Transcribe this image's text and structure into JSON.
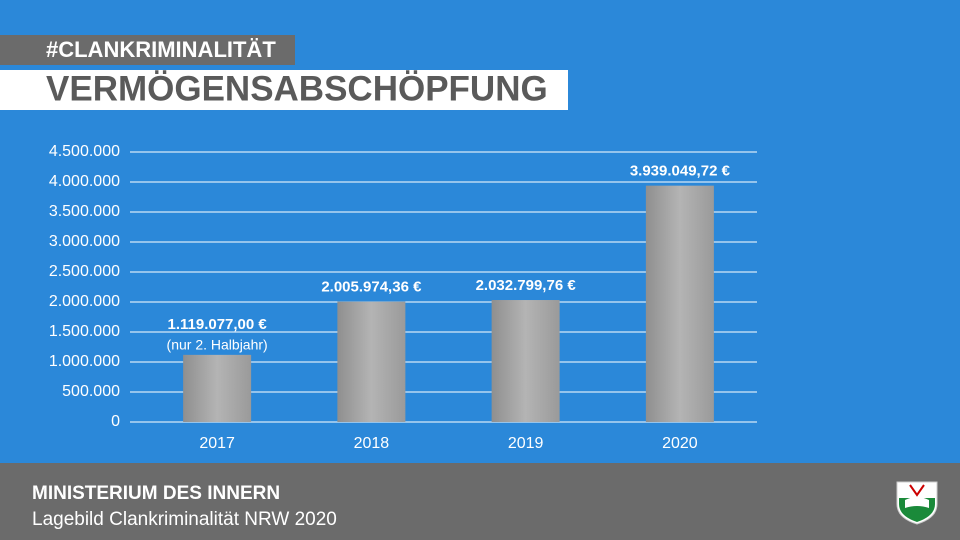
{
  "chart_data": {
    "type": "bar",
    "tag": "#CLANKRIMINALITÄT",
    "title": "VERMÖGENSABSCHÖPFUNG",
    "categories": [
      "2017",
      "2018",
      "2019",
      "2020"
    ],
    "values": [
      1119077.0,
      2005974.36,
      2032799.76,
      3939049.72
    ],
    "value_labels": [
      "1.119.077,00 €",
      "2.005.974,36 €",
      "2.032.799,76 €",
      "3.939.049,72 €"
    ],
    "annotation": "(nur 2. Halbjahr)",
    "color": "#a6a6a6",
    "ylim": [
      0,
      4500000
    ],
    "yticks": [
      0,
      {
        "value": 500000,
        "label": "500.000"
      },
      {
        "value": 1000000,
        "label": "1.000.000"
      },
      {
        "value": 1500000,
        "label": "1.500.000"
      },
      {
        "value": 2000000,
        "label": "2.000.000"
      },
      {
        "value": 2500000,
        "label": "2.500.000"
      },
      {
        "value": 3000000,
        "label": "3.000.000"
      },
      {
        "value": 3500000,
        "label": "3.500.000"
      },
      {
        "value": 4000000,
        "label": "4.000.000"
      },
      {
        "value": 4500000,
        "label": "4.500.000"
      }
    ],
    "grid": true
  },
  "footer": {
    "organization": "MINISTERIUM DES INNERN",
    "report": "Lagebild Clankriminalität NRW 2020"
  }
}
